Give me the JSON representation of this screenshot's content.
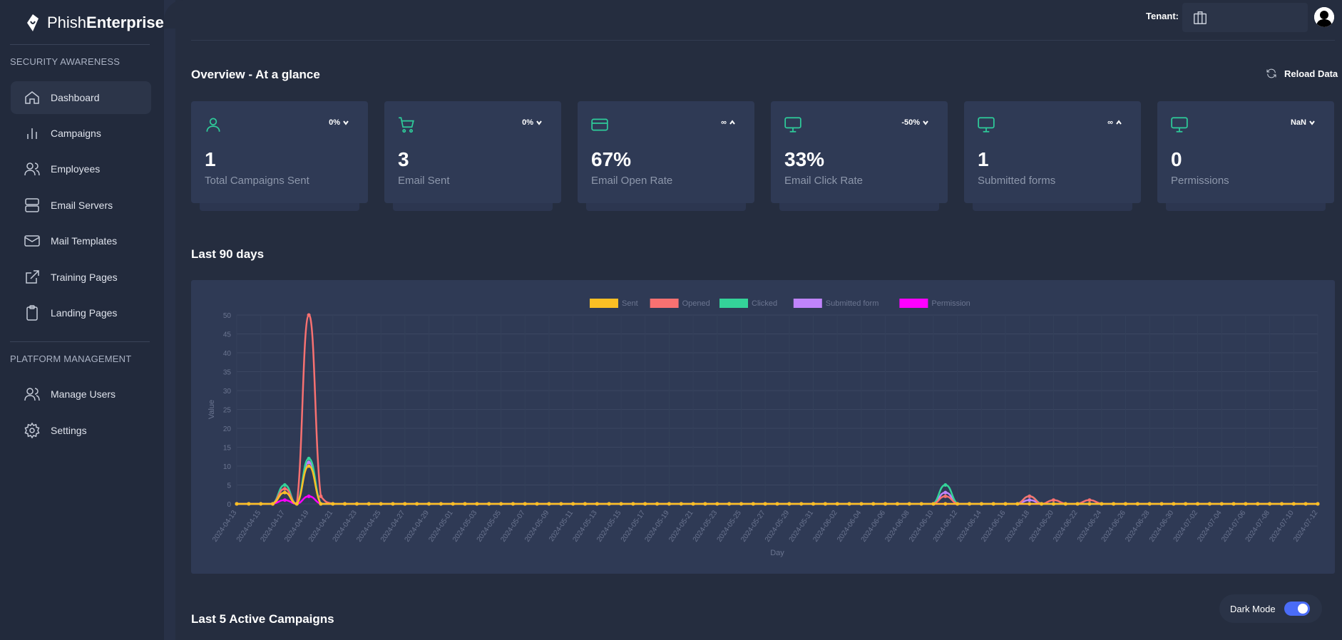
{
  "app": {
    "logo_regular": "Phish",
    "logo_bold": "Enterprise"
  },
  "sidebar": {
    "section1": "SECURITY AWARENESS",
    "items1": [
      {
        "label": "Dashboard",
        "icon": "home-icon",
        "active": true
      },
      {
        "label": "Campaigns",
        "icon": "bar-chart-icon"
      },
      {
        "label": "Employees",
        "icon": "users-icon"
      },
      {
        "label": "Email Servers",
        "icon": "server-icon"
      },
      {
        "label": "Mail Templates",
        "icon": "mail-icon"
      },
      {
        "label": "Training Pages",
        "icon": "external-link-icon"
      },
      {
        "label": "Landing Pages",
        "icon": "clipboard-icon"
      }
    ],
    "section2": "PLATFORM MANAGEMENT",
    "items2": [
      {
        "label": "Manage Users",
        "icon": "users-icon"
      },
      {
        "label": "Settings",
        "icon": "gear-icon"
      }
    ]
  },
  "header": {
    "tenant_label": "Tenant:",
    "tenant_value": ""
  },
  "overview": {
    "title": "Overview - At a glance",
    "reload_label": "Reload Data",
    "cards": [
      {
        "value": "1",
        "label": "Total Campaigns Sent",
        "delta": "0%",
        "direction": "down",
        "icon": "user-icon"
      },
      {
        "value": "3",
        "label": "Email Sent",
        "delta": "0%",
        "direction": "down",
        "icon": "cart-icon"
      },
      {
        "value": "67%",
        "label": "Email Open Rate",
        "delta": "∞",
        "direction": "up",
        "icon": "credit-card-icon"
      },
      {
        "value": "33%",
        "label": "Email Click Rate",
        "delta": "-50%",
        "direction": "down",
        "icon": "monitor-icon"
      },
      {
        "value": "1",
        "label": "Submitted forms",
        "delta": "∞",
        "direction": "up",
        "icon": "monitor-icon"
      },
      {
        "value": "0",
        "label": "Permissions",
        "delta": "NaN",
        "direction": "down",
        "icon": "monitor-icon"
      }
    ]
  },
  "last90": {
    "title": "Last 90 days"
  },
  "last5": {
    "title": "Last 5 Active Campaigns"
  },
  "darkmode": {
    "label": "Dark Mode",
    "on": true
  },
  "chart_data": {
    "type": "line",
    "xlabel": "Day",
    "ylabel": "Value",
    "ylim": [
      0,
      50
    ],
    "yticks": [
      0,
      5,
      10,
      15,
      20,
      25,
      30,
      35,
      40,
      45,
      50
    ],
    "legend_position": "top",
    "x_start": "2024-04-13",
    "x_end": "2024-07-12",
    "x_tick_every_days": 2,
    "series": [
      {
        "name": "Sent",
        "color": "#fbbf24",
        "points": [
          [
            "2024-04-17",
            3
          ],
          [
            "2024-04-19",
            10
          ]
        ]
      },
      {
        "name": "Opened",
        "color": "#f87171",
        "points": [
          [
            "2024-04-17",
            4
          ],
          [
            "2024-04-19",
            50
          ],
          [
            "2024-04-20",
            2
          ],
          [
            "2024-06-11",
            2
          ],
          [
            "2024-06-18",
            2
          ],
          [
            "2024-06-20",
            1
          ],
          [
            "2024-06-23",
            1
          ]
        ]
      },
      {
        "name": "Clicked",
        "color": "#34d399",
        "points": [
          [
            "2024-04-17",
            5
          ],
          [
            "2024-04-19",
            12
          ],
          [
            "2024-06-11",
            5
          ],
          [
            "2024-06-18",
            2
          ]
        ]
      },
      {
        "name": "Submitted form",
        "color": "#c084fc",
        "points": [
          [
            "2024-04-17",
            3
          ],
          [
            "2024-04-19",
            11
          ],
          [
            "2024-06-11",
            3
          ],
          [
            "2024-06-18",
            1
          ]
        ]
      },
      {
        "name": "Permission",
        "color": "#ff00ff",
        "points": [
          [
            "2024-04-17",
            1
          ],
          [
            "2024-04-19",
            2
          ]
        ]
      }
    ]
  }
}
